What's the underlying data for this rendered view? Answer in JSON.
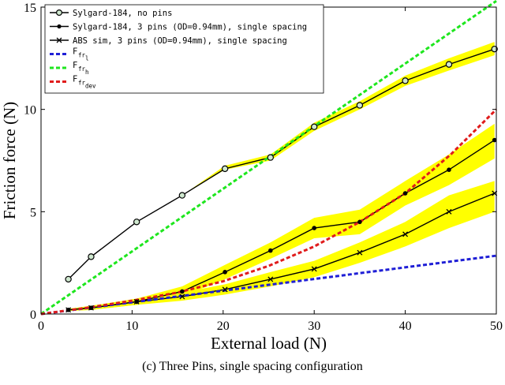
{
  "caption": "(c) Three Pins, single spacing configuration",
  "colors": {
    "band": "#ffff00",
    "dark": "#000000",
    "blue": "#1f1fd6",
    "green": "#1ee61e",
    "red": "#e01c1c",
    "open_marker": "#cfe8cf"
  },
  "chart_data": {
    "type": "line",
    "title": "",
    "xlabel": "External load (N)",
    "ylabel": "Friction force (N)",
    "xlim": [
      0,
      50
    ],
    "ylim": [
      0,
      15
    ],
    "xticks": [
      0,
      10,
      20,
      30,
      40,
      50
    ],
    "yticks": [
      0,
      5,
      10,
      15
    ],
    "grid": false,
    "legend_position": "top-left",
    "series": [
      {
        "name": "Sylgard-184, no pins",
        "style": "solid-open-circle",
        "x": [
          3,
          5.5,
          10.5,
          15.5,
          20.2,
          25.2,
          30,
          35,
          40,
          44.8,
          49.8
        ],
        "y": [
          1.7,
          2.8,
          4.5,
          5.8,
          7.1,
          7.65,
          9.15,
          10.2,
          11.4,
          12.2,
          12.95
        ],
        "y_low": [
          1.7,
          2.8,
          4.5,
          5.8,
          7.05,
          7.5,
          8.95,
          10.0,
          11.15,
          11.9,
          12.65
        ],
        "y_high": [
          1.7,
          2.8,
          4.5,
          5.8,
          7.25,
          7.8,
          9.35,
          10.4,
          11.65,
          12.5,
          13.3
        ]
      },
      {
        "name": "Sylgard-184, 3 pins (OD=0.94mm), single spacing",
        "style": "solid-dot",
        "x": [
          3,
          5.5,
          10.5,
          15.5,
          20.2,
          25.2,
          30,
          35,
          40,
          44.8,
          49.8
        ],
        "y": [
          0.2,
          0.3,
          0.6,
          1.1,
          2.05,
          3.1,
          4.2,
          4.5,
          5.9,
          7.05,
          8.5
        ],
        "y_low": [
          0.15,
          0.2,
          0.45,
          0.85,
          1.7,
          2.7,
          3.7,
          3.9,
          5.3,
          6.3,
          7.6
        ],
        "y_high": [
          0.25,
          0.4,
          0.75,
          1.35,
          2.4,
          3.5,
          4.7,
          5.1,
          6.5,
          7.8,
          9.3
        ]
      },
      {
        "name": "ABS sim, 3 pins (OD=0.94mm), single spacing",
        "style": "solid-cross",
        "x": [
          3,
          5.5,
          10.5,
          15.5,
          20.2,
          25.2,
          30,
          35,
          40,
          44.8,
          49.8
        ],
        "y": [
          0.2,
          0.3,
          0.6,
          0.85,
          1.2,
          1.7,
          2.2,
          3.0,
          3.9,
          5.0,
          5.9
        ],
        "y_low": [
          0.15,
          0.2,
          0.45,
          0.65,
          0.95,
          1.35,
          1.8,
          2.5,
          3.3,
          4.2,
          5.0
        ],
        "y_high": [
          0.25,
          0.4,
          0.75,
          1.05,
          1.45,
          2.05,
          2.6,
          3.5,
          4.5,
          5.8,
          6.5
        ]
      },
      {
        "name": "F_fr_l",
        "style": "dashed",
        "color": "blue",
        "x": [
          0,
          50
        ],
        "y": [
          0,
          2.85
        ]
      },
      {
        "name": "F_fr_h",
        "style": "dashed",
        "color": "green",
        "x": [
          0,
          50
        ],
        "y": [
          0,
          15.3
        ]
      },
      {
        "name": "F_fr_dev",
        "style": "dashed",
        "color": "red",
        "x": [
          0,
          5,
          10,
          15,
          20,
          25,
          30,
          35,
          40,
          45,
          50
        ],
        "y": [
          0,
          0.3,
          0.65,
          1.05,
          1.6,
          2.35,
          3.3,
          4.5,
          5.9,
          7.8,
          10.0
        ]
      }
    ],
    "legend": [
      {
        "text": "Sylgard-184, no pins"
      },
      {
        "text": "Sylgard-184, 3 pins (OD=0.94mm), single spacing"
      },
      {
        "text": "ABS sim, 3 pins (OD=0.94mm), single spacing"
      },
      {
        "main": "F",
        "sub": "fr",
        "subsub": "l"
      },
      {
        "main": "F",
        "sub": "fr",
        "subsub": "h"
      },
      {
        "main": "F",
        "sub": "fr",
        "subsub": "dev"
      }
    ]
  }
}
